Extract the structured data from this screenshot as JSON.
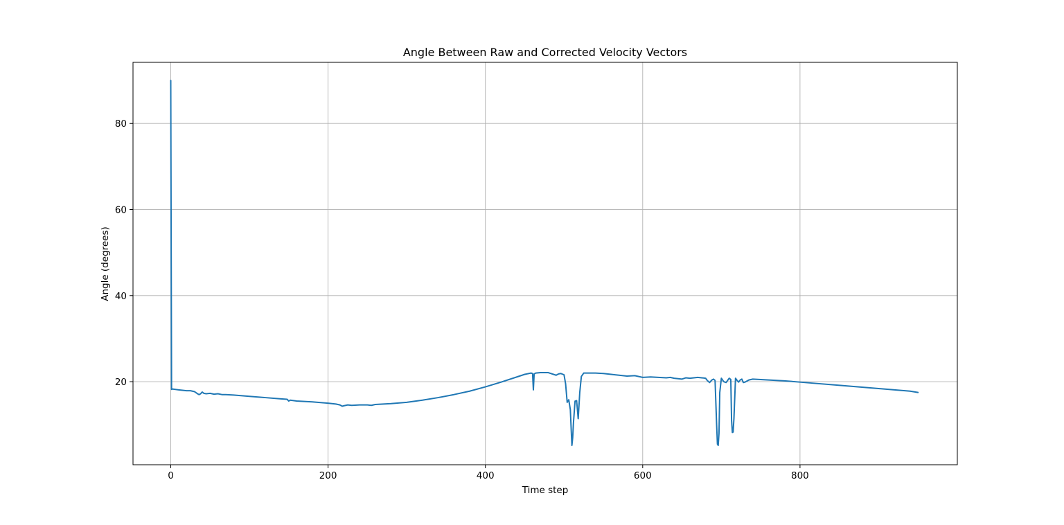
{
  "chart_data": {
    "type": "line",
    "title": "Angle Between Raw and Corrected Velocity Vectors",
    "xlabel": "Time step",
    "ylabel": "Angle (degrees)",
    "xlim": [
      -48,
      1000
    ],
    "ylim": [
      0.7,
      94.2
    ],
    "xticks": [
      0,
      200,
      400,
      600,
      800
    ],
    "yticks": [
      20,
      40,
      60,
      80
    ],
    "grid": true,
    "legend": "none",
    "series": [
      {
        "color": "#1f77b4",
        "x": [
          0,
          1,
          2,
          10,
          20,
          25,
          30,
          34,
          36,
          38,
          40,
          42,
          45,
          50,
          55,
          60,
          65,
          70,
          80,
          100,
          120,
          140,
          148,
          150,
          152,
          160,
          180,
          200,
          210,
          215,
          218,
          220,
          225,
          230,
          240,
          250,
          255,
          260,
          270,
          280,
          300,
          320,
          340,
          360,
          380,
          400,
          420,
          440,
          450,
          458,
          460,
          461,
          462,
          464,
          470,
          480,
          490,
          493,
          496,
          500,
          502,
          504,
          506,
          508,
          510,
          511,
          512,
          514,
          516,
          518,
          520,
          522,
          525,
          530,
          540,
          550,
          560,
          570,
          580,
          590,
          595,
          600,
          610,
          620,
          630,
          635,
          640,
          650,
          655,
          660,
          670,
          675,
          680,
          682,
          685,
          688,
          690,
          692,
          694,
          695,
          696,
          697,
          698,
          700,
          703,
          706,
          708,
          710,
          712,
          713,
          714,
          715,
          716,
          718,
          720,
          722,
          724,
          726,
          728,
          730,
          735,
          740,
          750,
          760,
          780,
          800,
          820,
          840,
          860,
          880,
          900,
          920,
          940,
          950
        ],
        "y": [
          90.0,
          18.2,
          18.3,
          18.1,
          17.9,
          17.9,
          17.7,
          17.2,
          17.0,
          17.2,
          17.6,
          17.3,
          17.2,
          17.3,
          17.1,
          17.2,
          17.0,
          17.0,
          16.9,
          16.6,
          16.3,
          16.0,
          15.9,
          15.5,
          15.7,
          15.5,
          15.3,
          15.0,
          14.8,
          14.6,
          14.3,
          14.4,
          14.6,
          14.5,
          14.6,
          14.6,
          14.5,
          14.7,
          14.8,
          14.9,
          15.2,
          15.7,
          16.3,
          17.0,
          17.8,
          18.8,
          19.9,
          21.1,
          21.7,
          22.0,
          21.9,
          18.1,
          21.8,
          22.0,
          22.1,
          22.1,
          21.5,
          21.8,
          21.9,
          21.6,
          19.5,
          15.2,
          15.8,
          13.5,
          5.2,
          7.0,
          10.5,
          15.5,
          15.6,
          11.4,
          17.5,
          21.2,
          22.0,
          22.0,
          22.0,
          21.9,
          21.7,
          21.5,
          21.3,
          21.4,
          21.2,
          21.0,
          21.1,
          21.0,
          20.9,
          21.0,
          20.8,
          20.6,
          20.9,
          20.8,
          21.0,
          20.9,
          20.8,
          20.3,
          19.8,
          20.4,
          20.6,
          20.3,
          10.0,
          5.5,
          5.2,
          8.0,
          17.5,
          20.8,
          20.0,
          19.8,
          20.3,
          20.8,
          20.5,
          11.0,
          8.2,
          8.3,
          11.5,
          20.8,
          20.3,
          19.9,
          20.4,
          20.6,
          19.8,
          19.9,
          20.4,
          20.6,
          20.5,
          20.4,
          20.2,
          19.9,
          19.6,
          19.3,
          19.0,
          18.7,
          18.4,
          18.1,
          17.8,
          17.5
        ]
      }
    ]
  }
}
